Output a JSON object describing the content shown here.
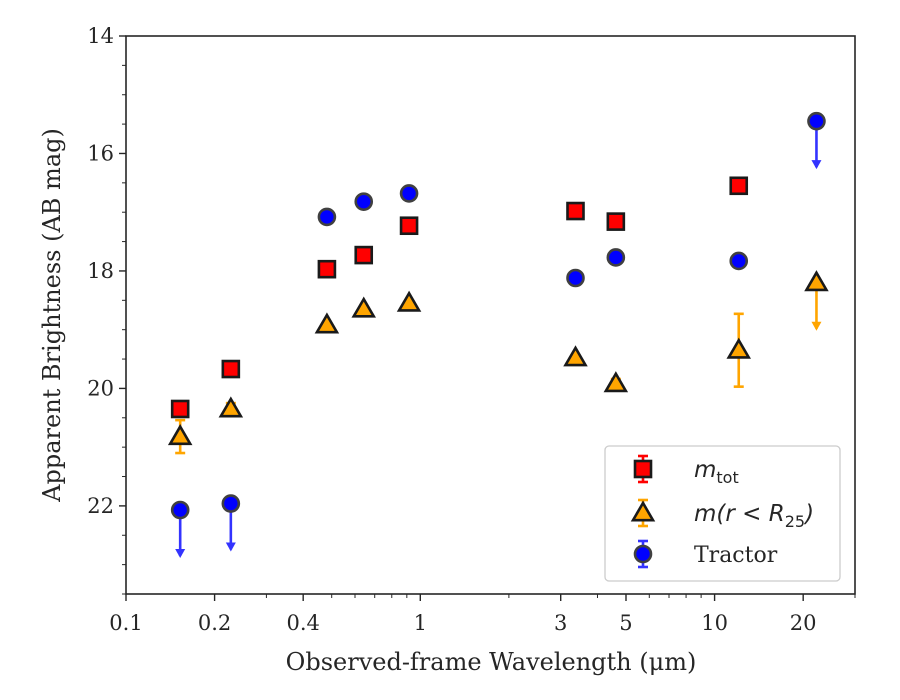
{
  "chart_data": {
    "type": "scatter",
    "title": "",
    "xlabel": "Observed-frame Wavelength (μm)",
    "ylabel": "Apparent Brightness (AB mag)",
    "xscale": "log",
    "xlim": [
      0.1,
      30
    ],
    "ylim": [
      23.5,
      14
    ],
    "y_inverted": true,
    "x_ticks": [
      {
        "value": 0.1,
        "label": "0.1"
      },
      {
        "value": 0.2,
        "label": "0.2"
      },
      {
        "value": 0.4,
        "label": "0.4"
      },
      {
        "value": 1,
        "label": "1"
      },
      {
        "value": 3,
        "label": "3"
      },
      {
        "value": 5,
        "label": "5"
      },
      {
        "value": 10,
        "label": "10"
      },
      {
        "value": 20,
        "label": "20"
      }
    ],
    "y_ticks": [
      {
        "value": 14,
        "label": "14"
      },
      {
        "value": 16,
        "label": "16"
      },
      {
        "value": 18,
        "label": "18"
      },
      {
        "value": 20,
        "label": "20"
      },
      {
        "value": 22,
        "label": "22"
      }
    ],
    "grid": false,
    "legend_position": "bottom-right",
    "series": [
      {
        "name": "m_tot",
        "marker": "square",
        "color": "#ff0000",
        "edgecolor": "#1a1a1a",
        "errcolor": "#ff0000",
        "points": [
          {
            "x": 0.1528,
            "y": 20.35
          },
          {
            "x": 0.2271,
            "y": 19.67
          },
          {
            "x": 0.4816,
            "y": 17.97
          },
          {
            "x": 0.6424,
            "y": 17.73
          },
          {
            "x": 0.9159,
            "y": 17.23
          },
          {
            "x": 3.368,
            "y": 16.98
          },
          {
            "x": 4.618,
            "y": 17.16
          },
          {
            "x": 12.08,
            "y": 16.55
          }
        ]
      },
      {
        "name": "m(r<R25)",
        "marker": "triangle",
        "color": "#ffa500",
        "edgecolor": "#1a1a1a",
        "errcolor": "#ffa500",
        "points": [
          {
            "x": 0.1528,
            "y": 20.82,
            "err": 0.28
          },
          {
            "x": 0.2271,
            "y": 20.35,
            "err": 0.1
          },
          {
            "x": 0.4816,
            "y": 18.92
          },
          {
            "x": 0.6424,
            "y": 18.65
          },
          {
            "x": 0.9159,
            "y": 18.55
          },
          {
            "x": 3.368,
            "y": 19.48
          },
          {
            "x": 4.618,
            "y": 19.92,
            "err": 0.08
          },
          {
            "x": 12.08,
            "y": 19.35,
            "err": 0.62
          },
          {
            "x": 22.19,
            "y": 18.2,
            "upper_limit": true
          }
        ]
      },
      {
        "name": "Tractor",
        "marker": "circle",
        "color": "#0000ff",
        "edgecolor": "#404040",
        "errcolor": "#3333ff",
        "points": [
          {
            "x": 0.1528,
            "y": 22.07,
            "upper_limit": true
          },
          {
            "x": 0.2271,
            "y": 21.96,
            "upper_limit": true
          },
          {
            "x": 0.4816,
            "y": 17.08
          },
          {
            "x": 0.6424,
            "y": 16.82
          },
          {
            "x": 0.9159,
            "y": 16.68
          },
          {
            "x": 3.368,
            "y": 18.12
          },
          {
            "x": 4.618,
            "y": 17.77
          },
          {
            "x": 12.08,
            "y": 17.83
          },
          {
            "x": 22.19,
            "y": 15.45,
            "upper_limit": true
          }
        ]
      }
    ],
    "legend": [
      {
        "series": "m_tot",
        "label_main": "m",
        "label_sub": "tot"
      },
      {
        "series": "m(r<R25)",
        "label_main": "m(r < R",
        "label_sub": "25",
        "label_tail": ")"
      },
      {
        "series": "Tractor",
        "label_main": "Tractor"
      }
    ]
  }
}
